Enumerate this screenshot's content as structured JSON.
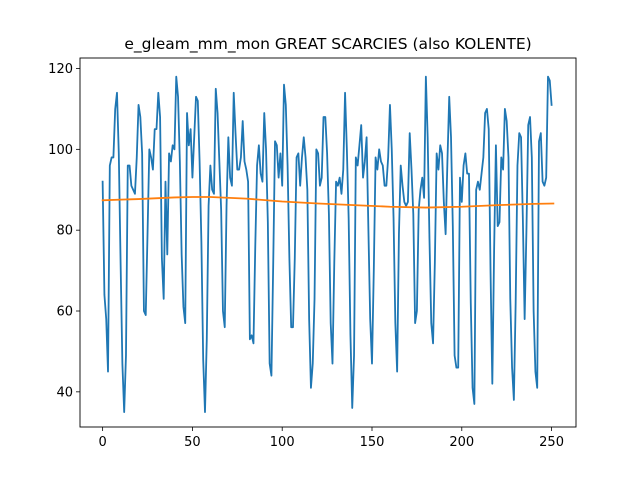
{
  "chart_data": {
    "type": "line",
    "title": "e_gleam_mm_mon GREAT SCARCIES (also KOLENTE)",
    "xlabel": "",
    "ylabel": "",
    "xlim": [
      -12.6,
      263.6
    ],
    "ylim": [
      31.3,
      122.6
    ],
    "xticks": [
      0,
      50,
      100,
      150,
      200,
      250
    ],
    "yticks": [
      40,
      60,
      80,
      100,
      120
    ],
    "grid": false,
    "colors": {
      "monthly": "#1f77b4",
      "trend": "#ff7f0e"
    },
    "series": [
      {
        "key": "monthly",
        "values": [
          92,
          64,
          58,
          45,
          96,
          98,
          98,
          110,
          114,
          99,
          72,
          47,
          35,
          49,
          96,
          96,
          91,
          90,
          89,
          98,
          111,
          108,
          99,
          60,
          59,
          79,
          100,
          98,
          95,
          105,
          105,
          114,
          108,
          73,
          63,
          92,
          74,
          99,
          97,
          101,
          100,
          118,
          113,
          97,
          74,
          61,
          57,
          109,
          101,
          105,
          93,
          103,
          113,
          112,
          97,
          77,
          48,
          35,
          53,
          86,
          96,
          90,
          89,
          115,
          109,
          97,
          85,
          60,
          56,
          86,
          103,
          93,
          91,
          114,
          104,
          95,
          95,
          98,
          107,
          97,
          95,
          92,
          53,
          54,
          52,
          76,
          96,
          101,
          94,
          92,
          109,
          100,
          82,
          47,
          44,
          72,
          102,
          101,
          93,
          99,
          91,
          116,
          111,
          96,
          73,
          56,
          56,
          73,
          98,
          99,
          91,
          98,
          103,
          98,
          90,
          58,
          41,
          47,
          63,
          100,
          99,
          91,
          93,
          108,
          108,
          99,
          84,
          57,
          47,
          72,
          92,
          91,
          93,
          89,
          95,
          114,
          100,
          83,
          54,
          36,
          49,
          98,
          96,
          101,
          106,
          93,
          97,
          103,
          80,
          58,
          47,
          70,
          98,
          95,
          100,
          97,
          96,
          91,
          91,
          98,
          111,
          100,
          83,
          57,
          45,
          79,
          96,
          91,
          87,
          86,
          87,
          104,
          95,
          84,
          57,
          60,
          85,
          90,
          93,
          88,
          118,
          103,
          78,
          57,
          52,
          72,
          99,
          95,
          101,
          99,
          87,
          79,
          97,
          113,
          103,
          81,
          49,
          46,
          46,
          93,
          87,
          96,
          99,
          94,
          94,
          62,
          41,
          37,
          90,
          92,
          90,
          94,
          98,
          109,
          110,
          105,
          70,
          42,
          75,
          101,
          81,
          82,
          98,
          95,
          110,
          107,
          98,
          63,
          46,
          38,
          62,
          96,
          104,
          103,
          83,
          58,
          80,
          106,
          108,
          98,
          60,
          45,
          41,
          102,
          104,
          92,
          91,
          93,
          118,
          117,
          111
        ],
        "color": "#1f77b4"
      },
      {
        "key": "trend",
        "points": [
          [
            0,
            87.4
          ],
          [
            20,
            87.7
          ],
          [
            40,
            88.1
          ],
          [
            50,
            88.2
          ],
          [
            60,
            88.2
          ],
          [
            80,
            87.8
          ],
          [
            100,
            87.1
          ],
          [
            120,
            86.6
          ],
          [
            140,
            86.2
          ],
          [
            160,
            85.8
          ],
          [
            180,
            85.6
          ],
          [
            200,
            85.8
          ],
          [
            220,
            86.2
          ],
          [
            240,
            86.5
          ],
          [
            251,
            86.6
          ]
        ],
        "color": "#ff7f0e"
      }
    ]
  }
}
